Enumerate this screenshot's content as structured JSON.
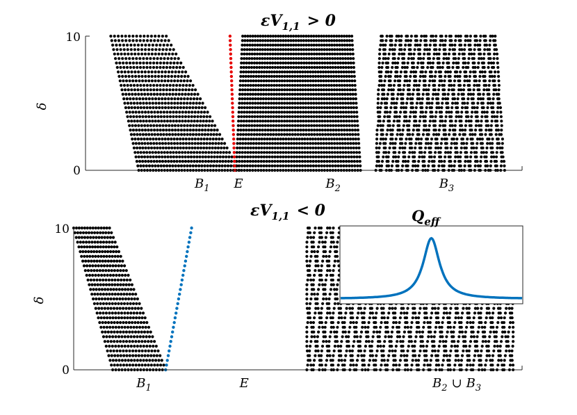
{
  "colors": {
    "dots": "#000000",
    "top_line": "#e60000",
    "bottom_line": "#0072bd",
    "curve": "#0072bd",
    "axis": "#262626"
  },
  "chart_data": [
    {
      "type": "scatter",
      "title_main": "εV",
      "title_sub": "1,1",
      "title_rel": "> 0",
      "ylabel": "δ",
      "y_ticks": [
        "0",
        "10"
      ],
      "ylim": [
        0,
        10
      ],
      "x_labels": [
        {
          "main": "B",
          "sub": "1",
          "x": 0.25
        },
        {
          "main": "E",
          "sub": "",
          "x": 0.34
        },
        {
          "main": "B",
          "sub": "2",
          "x": 0.55
        },
        {
          "main": "B",
          "sub": "3",
          "x": 0.81
        }
      ],
      "line_series": {
        "points": [
          [
            0.342,
            0
          ],
          [
            0.331,
            10
          ]
        ]
      },
      "regions": [
        {
          "name": "B1",
          "top": [
            0.058,
            0.185
          ],
          "bottom": [
            0.122,
            0.352
          ],
          "rows": 31,
          "top_n": 16,
          "bottom_n": 36,
          "jitter": 0
        },
        {
          "name": "B2",
          "top": [
            0.36,
            0.61
          ],
          "bottom": [
            0.345,
            0.63
          ],
          "rows": 31,
          "top_n": 44,
          "bottom_n": 46,
          "jitter": 0
        },
        {
          "name": "B3",
          "top": [
            0.675,
            0.94
          ],
          "bottom": [
            0.665,
            0.96
          ],
          "rows": 31,
          "top_n": 38,
          "bottom_n": 40,
          "jitter": 1
        }
      ]
    },
    {
      "type": "scatter",
      "title_main": "εV",
      "title_sub": "1,1",
      "title_rel": "< 0",
      "ylabel": "δ",
      "y_ticks": [
        "0",
        "10"
      ],
      "ylim": [
        0,
        10
      ],
      "x_labels": [
        {
          "main": "B",
          "sub": "1",
          "x": 0.14
        },
        {
          "main": "E",
          "sub": "",
          "x": 0.37
        },
        {
          "main": "B",
          "sub": "2",
          "union": "∪",
          "main2": "B",
          "sub2": "3",
          "x": 0.8
        }
      ],
      "line_series": {
        "points": [
          [
            0.205,
            0
          ],
          [
            0.263,
            10
          ]
        ]
      },
      "regions": [
        {
          "name": "B1",
          "top": [
            0.0,
            0.08
          ],
          "bottom": [
            0.087,
            0.205
          ],
          "rows": 31,
          "top_n": 14,
          "bottom_n": 18,
          "jitter": 0
        },
        {
          "name": "B2uB3",
          "top": [
            0.52,
            0.98
          ],
          "bottom": [
            0.52,
            0.98
          ],
          "rows": 31,
          "top_n": 54,
          "bottom_n": 54,
          "jitter": 1
        }
      ]
    }
  ],
  "inset": {
    "title_main": "Q",
    "title_sub": "eff",
    "curve": {
      "center": 0.5,
      "width": 0.055,
      "peak": 0.9,
      "baseline": 0.0
    }
  }
}
